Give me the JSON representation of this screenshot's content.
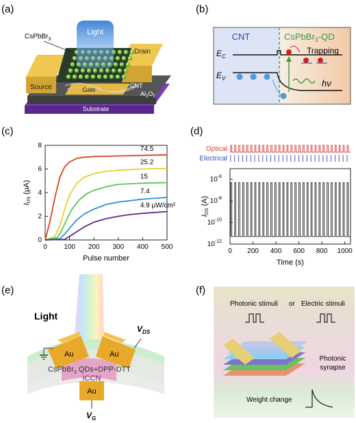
{
  "panels": {
    "a": {
      "tag": "(a)",
      "labels": {
        "light": "Light",
        "material": "CsPbBr",
        "material_sub": "3",
        "drain": "Drain",
        "source": "Source",
        "cnt": "CNT",
        "oxide": "Al",
        "oxide_sub1": "2",
        "oxide_o": "O",
        "oxide_sub2": "3",
        "gate": "Gate",
        "substrate": "Substrate"
      }
    },
    "b": {
      "tag": "(b)",
      "labels": {
        "cnt": "CNT",
        "qd": "CsPbBr",
        "qd_sub": "3",
        "qd_suffix": "-QD",
        "ec": "E",
        "ec_sub": "C",
        "ev": "E",
        "ev_sub": "V",
        "trapping": "Trapping",
        "hv": "hν"
      }
    },
    "c": {
      "tag": "(c)",
      "chart_data": {
        "type": "line",
        "xlabel": "Pulse number",
        "ylabel": "I",
        "ylabel_sub": "DS",
        "ylabel_unit": " (μA)",
        "xlim": [
          0,
          500
        ],
        "ylim": [
          0,
          8
        ],
        "xticks": [
          "0",
          "100",
          "200",
          "300",
          "400",
          "500"
        ],
        "yticks": [
          "0",
          "2",
          "4",
          "6",
          "8"
        ],
        "series": [
          {
            "name": "74.5",
            "color": "#d9411e",
            "x": [
              0,
              20,
              40,
              60,
              80,
              100,
              130,
              160,
              200,
              300,
              400,
              500
            ],
            "y": [
              0,
              1.6,
              3.6,
              5.3,
              6.2,
              6.6,
              6.9,
              7.0,
              7.05,
              7.1,
              7.15,
              7.2
            ]
          },
          {
            "name": "25.2",
            "color": "#e6d02a",
            "x": [
              0,
              40,
              60,
              80,
              100,
              130,
              160,
              200,
              250,
              300,
              400,
              500
            ],
            "y": [
              0,
              0.3,
              1.2,
              2.6,
              3.8,
              4.8,
              5.3,
              5.6,
              5.8,
              5.9,
              6.0,
              6.05
            ]
          },
          {
            "name": "15",
            "color": "#59c74f",
            "x": [
              0,
              50,
              70,
              90,
              110,
              140,
              170,
              200,
              250,
              300,
              400,
              500
            ],
            "y": [
              0,
              0.2,
              0.9,
              1.8,
              2.6,
              3.4,
              3.9,
              4.2,
              4.5,
              4.7,
              4.8,
              4.85
            ]
          },
          {
            "name": "7.4",
            "color": "#2a8fd0",
            "x": [
              0,
              60,
              80,
              100,
              130,
              160,
              200,
              250,
              300,
              400,
              500
            ],
            "y": [
              0,
              0.1,
              0.5,
              1.0,
              1.7,
              2.2,
              2.6,
              3.0,
              3.2,
              3.45,
              3.6
            ]
          },
          {
            "name": "4.9 μW/cm²",
            "color": "#5a2a8a",
            "x": [
              0,
              80,
              100,
              130,
              160,
              200,
              250,
              300,
              350,
              400,
              500
            ],
            "y": [
              0,
              0.05,
              0.3,
              0.7,
              1.1,
              1.5,
              1.8,
              2.0,
              2.15,
              2.25,
              2.4
            ]
          }
        ]
      }
    },
    "d": {
      "tag": "(d)",
      "legend_optical": "Optical",
      "legend_electrical": "Electrical",
      "chart_data": {
        "type": "line",
        "xlabel": "Time (s)",
        "ylabel": "I",
        "ylabel_sub": "DS",
        "ylabel_unit": " (A)",
        "xlim": [
          0,
          1050
        ],
        "y_scale": "log",
        "ylim": [
          1e-12,
          1e-05
        ],
        "xticks": [
          "0",
          "200",
          "400",
          "600",
          "800",
          "1000"
        ],
        "yticks": [
          {
            "base": "10",
            "exp": "-12"
          },
          {
            "base": "10",
            "exp": "-10"
          },
          {
            "base": "10",
            "exp": "-8"
          },
          {
            "base": "10",
            "exp": "-6"
          }
        ],
        "pulse_count": 30,
        "high_level": 5e-07,
        "low_level": 5e-12
      }
    },
    "e": {
      "tag": "(e)",
      "labels": {
        "light": "Light",
        "vds": "V",
        "vds_sub": "DS",
        "au_left": "Au",
        "au_right": "Au",
        "au_gate": "Au",
        "layer": "CsPbBr",
        "layer_sub": "3",
        "layer_suffix": " QDs+DPP-DTT",
        "dielectric": "ICCN",
        "vg": "V",
        "vg_sub": "G"
      }
    },
    "f": {
      "tag": "(f)",
      "labels": {
        "photonic": "Photonic stimuli",
        "or": "or",
        "electric": "Electric stimuli",
        "synapse_line1": "Photonic",
        "synapse_line2": "synapse",
        "weight": "Weight change"
      }
    }
  }
}
